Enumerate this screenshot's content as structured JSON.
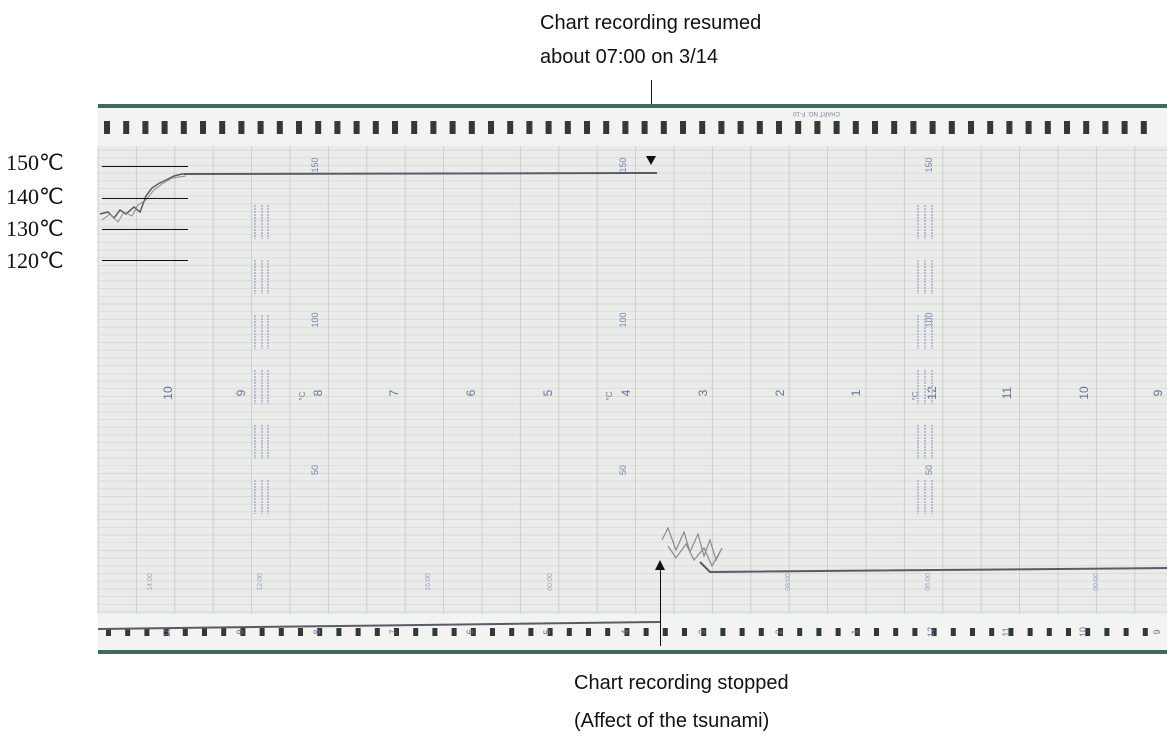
{
  "annotations": {
    "resumed_line1": "Chart recording resumed",
    "resumed_line2": "about 07:00 on 3/14",
    "stopped_line1": "Chart recording stopped",
    "stopped_line2": "(Affect of the tsunami)"
  },
  "temperature_labels": [
    "150℃",
    "140℃",
    "130℃",
    "120℃"
  ],
  "chart_paper": {
    "header_text": "CHART NO. F-10",
    "scale_labels": [
      "150",
      "100",
      "50"
    ],
    "hour_labels": [
      "10",
      "9",
      "8",
      "7",
      "6",
      "5",
      "4",
      "3",
      "2",
      "1",
      "12",
      "11",
      "10",
      "9"
    ],
    "unit_label": "°C",
    "time_stamps": [
      "14:00",
      "12:00",
      "16:00",
      "00:00",
      "08:00",
      "06:00",
      "00:00"
    ],
    "paper_color": "#e9ece8",
    "border_color": "#3f6b5c",
    "trace_color": "#5c5a66"
  }
}
